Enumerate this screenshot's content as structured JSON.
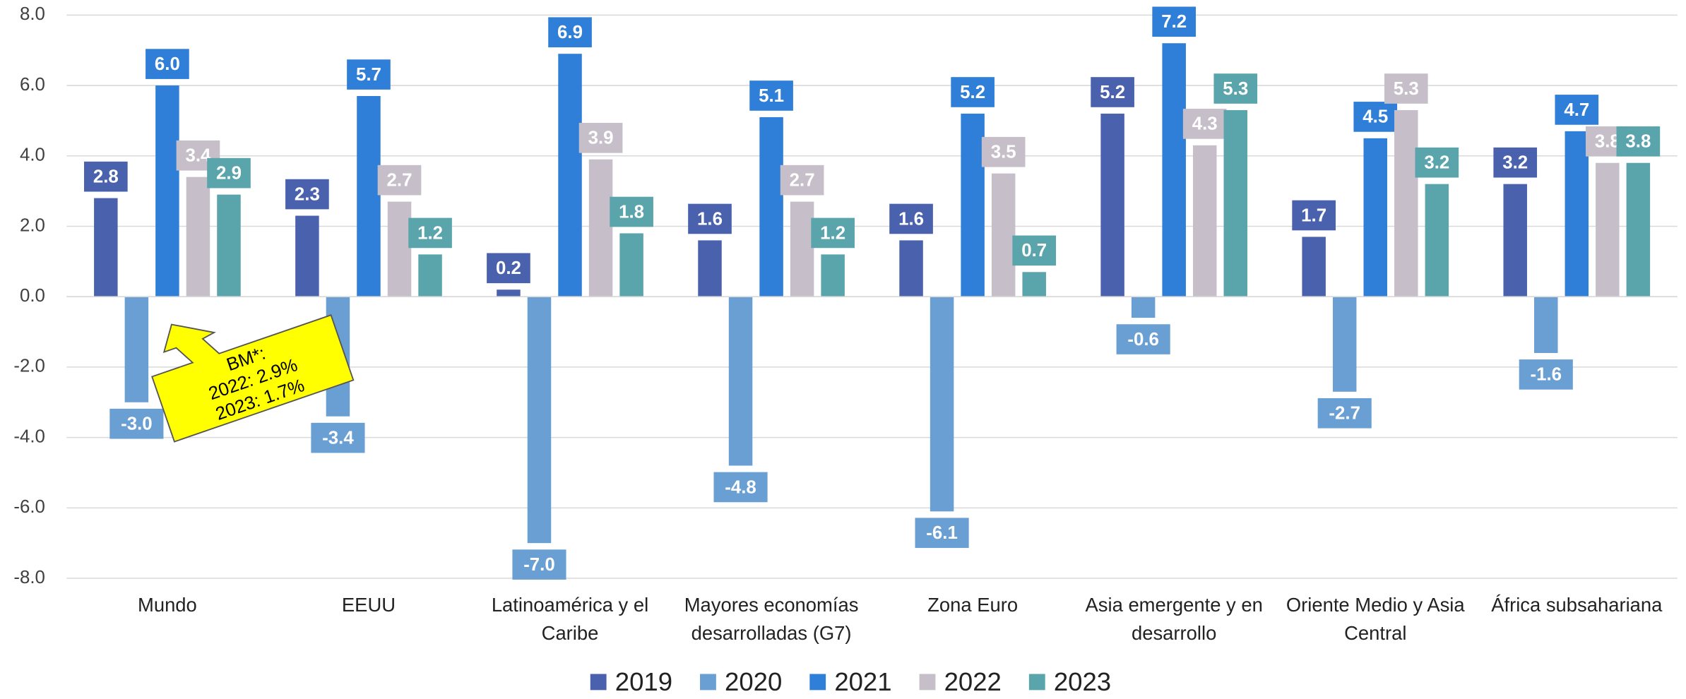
{
  "chart_data": {
    "type": "bar",
    "categories": [
      "Mundo",
      "EEUU",
      "Latinoamérica y el Caribe",
      "Mayores economías desarrolladas (G7)",
      "Zona Euro",
      "Asia emergente y en desarrollo",
      "Oriente Medio y Asia Central",
      "África subsahariana"
    ],
    "series": [
      {
        "name": "2019",
        "color": "#4a62ad",
        "values": [
          2.8,
          2.3,
          0.2,
          1.6,
          1.6,
          5.2,
          1.7,
          3.2
        ],
        "value_labels": [
          "2.8",
          "2.3",
          "0.2",
          "1.6",
          "1.6",
          "5.2",
          "1.7",
          "3.2"
        ]
      },
      {
        "name": "2020",
        "color": "#6a9fd4",
        "values": [
          -3.0,
          -3.4,
          -7.0,
          -4.8,
          -6.1,
          -0.6,
          -2.7,
          -1.6
        ],
        "value_labels": [
          "-3.0",
          "-3.4",
          "-7.0",
          "-4.8",
          "-6.1",
          "-0.6",
          "-2.7",
          "-1.6"
        ]
      },
      {
        "name": "2021",
        "color": "#2f7fd8",
        "values": [
          6.0,
          5.7,
          6.9,
          5.1,
          5.2,
          7.2,
          4.5,
          4.7
        ],
        "value_labels": [
          "6.0",
          "5.7",
          "6.9",
          "5.1",
          "5.2",
          "7.2",
          "4.5",
          "4.7"
        ]
      },
      {
        "name": "2022",
        "color": "#c6bec9",
        "values": [
          3.4,
          2.7,
          3.9,
          2.7,
          3.5,
          4.3,
          5.3,
          3.8
        ],
        "value_labels": [
          "3.4",
          "2.7",
          "3.9",
          "2.7",
          "3.5",
          "4.3",
          "5.3",
          "3.8"
        ]
      },
      {
        "name": "2023",
        "color": "#5aa4ac",
        "values": [
          2.9,
          1.2,
          1.8,
          1.2,
          0.7,
          5.3,
          3.2,
          3.8
        ],
        "value_labels": [
          "2.9",
          "1.2",
          "1.8",
          "1.2",
          "0.7",
          "5.3",
          "3.2",
          "3.8"
        ]
      }
    ],
    "ylim": [
      -8,
      8
    ],
    "yticks": [
      {
        "value": -8,
        "label": "-8.0"
      },
      {
        "value": -6,
        "label": "-6.0"
      },
      {
        "value": -4,
        "label": "-4.0"
      },
      {
        "value": -2,
        "label": "-2.0"
      },
      {
        "value": 0,
        "label": "0.0"
      },
      {
        "value": 2,
        "label": "2.0"
      },
      {
        "value": 4,
        "label": "4.0"
      },
      {
        "value": 6,
        "label": "6.0"
      },
      {
        "value": 8,
        "label": "8.0"
      }
    ],
    "grid": true,
    "legend": "bottom",
    "annotation": {
      "lines": [
        "BM*:",
        "2022: 2.9%",
        "2023: 1.7%"
      ]
    }
  }
}
